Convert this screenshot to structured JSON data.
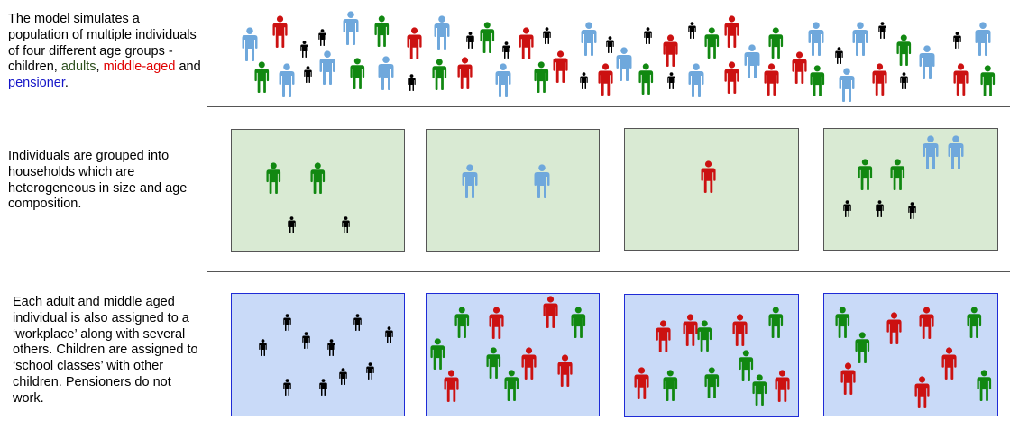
{
  "text1": {
    "part1": "The model simulates a population of multiple individuals of four different age groups - children, ",
    "adults": "adults",
    "comma": ",",
    "middle": "middle-aged",
    "and": " and ",
    "pensioner": "pensioner",
    "period": "."
  },
  "text2": "Individuals are grouped into households which are heterogeneous in size and age composition.",
  "text3": "Each adult and middle aged individual is also assigned to a ‘workplace’ along with several others. Children are assigned to ‘school classes’ with other children. Pensioners do not work.",
  "colors": {
    "child": "#000000",
    "adult": "#118811",
    "middle": "#cc1111",
    "pensioner": "#6fa8dc",
    "adults_text": "#2d4f1e",
    "middle_text": "#e00000",
    "pensioner_text": "#1515c8",
    "household_bg": "#d9ead3",
    "workplace_bg": "#c9daf8",
    "workplace_border": "#1f2bd6"
  }
}
